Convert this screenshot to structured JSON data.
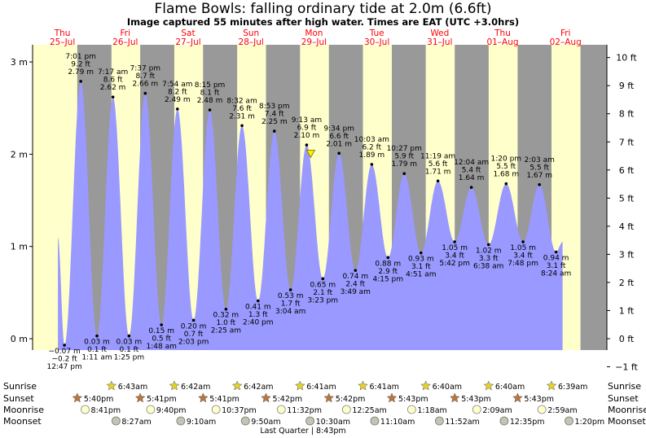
{
  "title": "Flame Bowls: falling  ordinary tide at 2.0m (6.6ft)",
  "subtitle": "Image captured 55 minutes after high water. Times are EAT (UTC +3.0hrs)",
  "days": [
    {
      "name": "Thu",
      "date": "25–Jul"
    },
    {
      "name": "Fri",
      "date": "26–Jul"
    },
    {
      "name": "Sat",
      "date": "27–Jul"
    },
    {
      "name": "Sun",
      "date": "28–Jul"
    },
    {
      "name": "Mon",
      "date": "29–Jul"
    },
    {
      "name": "Tue",
      "date": "30–Jul"
    },
    {
      "name": "Wed",
      "date": "31–Jul"
    },
    {
      "name": "Thu",
      "date": "01–Aug"
    },
    {
      "name": "Fri",
      "date": "02–Aug"
    }
  ],
  "chart_data": {
    "type": "area",
    "title": "Flame Bowls: falling  ordinary tide at 2.0m (6.6ft)",
    "ylabel_left_unit": "m",
    "ylabel_right_unit": "ft",
    "ylim_m": [
      -0.45,
      3.3
    ],
    "y_ticks_m": [
      "0 m",
      "1 m",
      "2 m",
      "3 m"
    ],
    "y_ticks_ft": [
      "−1 ft",
      "0 ft",
      "1 ft",
      "2 ft",
      "3 ft",
      "4 ft",
      "5 ft",
      "6 ft",
      "7 ft",
      "8 ft",
      "9 ft",
      "10 ft"
    ],
    "current_level_m": 2.0,
    "tides": [
      {
        "type": "low",
        "day": "25-Jul",
        "time": "12:47 pm",
        "m": "−0.07 m",
        "ft": "−0.2 ft",
        "value": -0.07
      },
      {
        "type": "high",
        "day": "25-Jul",
        "time": "7:01 pm",
        "m": "2.79 m",
        "ft": "9.2 ft",
        "value": 2.79
      },
      {
        "type": "low",
        "day": "26-Jul",
        "time": "1:11 am",
        "m": "0.03 m",
        "ft": "0.1 ft",
        "value": 0.03
      },
      {
        "type": "high",
        "day": "26-Jul",
        "time": "7:17 am",
        "m": "2.62 m",
        "ft": "8.6 ft",
        "value": 2.62
      },
      {
        "type": "low",
        "day": "26-Jul",
        "time": "1:25 pm",
        "m": "0.03 m",
        "ft": "0.1 ft",
        "value": 0.03
      },
      {
        "type": "high",
        "day": "26-Jul",
        "time": "7:37 pm",
        "m": "2.66 m",
        "ft": "8.7 ft",
        "value": 2.66
      },
      {
        "type": "low",
        "day": "27-Jul",
        "time": "1:48 am",
        "m": "0.15 m",
        "ft": "0.5 ft",
        "value": 0.15
      },
      {
        "type": "high",
        "day": "27-Jul",
        "time": "7:54 am",
        "m": "2.49 m",
        "ft": "8.2 ft",
        "value": 2.49
      },
      {
        "type": "low",
        "day": "27-Jul",
        "time": "2:03 pm",
        "m": "0.20 m",
        "ft": "0.7 ft",
        "value": 0.2
      },
      {
        "type": "high",
        "day": "27-Jul",
        "time": "8:15 pm",
        "m": "2.48 m",
        "ft": "8.1 ft",
        "value": 2.48
      },
      {
        "type": "low",
        "day": "28-Jul",
        "time": "2:25 am",
        "m": "0.32 m",
        "ft": "1.0 ft",
        "value": 0.32
      },
      {
        "type": "high",
        "day": "28-Jul",
        "time": "8:32 am",
        "m": "2.31 m",
        "ft": "7.6 ft",
        "value": 2.31
      },
      {
        "type": "low",
        "day": "28-Jul",
        "time": "2:40 pm",
        "m": "0.41 m",
        "ft": "1.3 ft",
        "value": 0.41
      },
      {
        "type": "high",
        "day": "28-Jul",
        "time": "8:53 pm",
        "m": "2.25 m",
        "ft": "7.4 ft",
        "value": 2.25
      },
      {
        "type": "low",
        "day": "29-Jul",
        "time": "3:04 am",
        "m": "0.53 m",
        "ft": "1.7 ft",
        "value": 0.53
      },
      {
        "type": "high",
        "day": "29-Jul",
        "time": "9:13 am",
        "m": "2.10 m",
        "ft": "6.9 ft",
        "value": 2.1
      },
      {
        "type": "low",
        "day": "29-Jul",
        "time": "3:23 pm",
        "m": "0.65 m",
        "ft": "2.1 ft",
        "value": 0.65
      },
      {
        "type": "high",
        "day": "29-Jul",
        "time": "9:34 pm",
        "m": "2.01 m",
        "ft": "6.6 ft",
        "value": 2.01
      },
      {
        "type": "low",
        "day": "30-Jul",
        "time": "3:49 am",
        "m": "0.74 m",
        "ft": "2.4 ft",
        "value": 0.74
      },
      {
        "type": "high",
        "day": "30-Jul",
        "time": "10:03 am",
        "m": "1.89 m",
        "ft": "6.2 ft",
        "value": 1.89
      },
      {
        "type": "low",
        "day": "30-Jul",
        "time": "4:15 pm",
        "m": "0.88 m",
        "ft": "2.9 ft",
        "value": 0.88
      },
      {
        "type": "high",
        "day": "30-Jul",
        "time": "10:27 pm",
        "m": "1.79 m",
        "ft": "5.9 ft",
        "value": 1.79
      },
      {
        "type": "low",
        "day": "31-Jul",
        "time": "4:51 am",
        "m": "0.93 m",
        "ft": "3.1 ft",
        "value": 0.93
      },
      {
        "type": "high",
        "day": "31-Jul",
        "time": "11:19 am",
        "m": "1.71 m",
        "ft": "5.6 ft",
        "value": 1.71
      },
      {
        "type": "low",
        "day": "31-Jul",
        "time": "5:42 pm",
        "m": "1.05 m",
        "ft": "3.4 ft",
        "value": 1.05
      },
      {
        "type": "high",
        "day": "01-Aug",
        "time": "12:04 am",
        "m": "1.64 m",
        "ft": "5.4 ft",
        "value": 1.64
      },
      {
        "type": "low",
        "day": "01-Aug",
        "time": "6:38 am",
        "m": "1.02 m",
        "ft": "3.3 ft",
        "value": 1.02
      },
      {
        "type": "high",
        "day": "01-Aug",
        "time": "1:20 pm",
        "m": "1.68 m",
        "ft": "5.5 ft",
        "value": 1.68
      },
      {
        "type": "low",
        "day": "01-Aug",
        "time": "7:48 pm",
        "m": "1.05 m",
        "ft": "3.4 ft",
        "value": 1.05
      },
      {
        "type": "high",
        "day": "02-Aug",
        "time": "2:03 am",
        "m": "1.67 m",
        "ft": "5.5 ft",
        "value": 1.67
      },
      {
        "type": "low",
        "day": "02-Aug",
        "time": "8:24 am",
        "m": "0.94 m",
        "ft": "3.1 ft",
        "value": 0.94
      }
    ]
  },
  "rows": {
    "sunrise_label": "Sunrise",
    "sunset_label": "Sunset",
    "moonrise_label": "Moonrise",
    "moonset_label": "Moonset",
    "sunrise": [
      "6:43am",
      "6:42am",
      "6:42am",
      "6:41am",
      "6:41am",
      "6:40am",
      "6:40am",
      "6:39am"
    ],
    "sunset": [
      "5:40pm",
      "5:41pm",
      "5:41pm",
      "5:42pm",
      "5:42pm",
      "5:43pm",
      "5:43pm",
      "5:43pm"
    ],
    "moonrise": [
      "8:41pm",
      "9:40pm",
      "10:37pm",
      "11:32pm",
      "12:25am",
      "1:18am",
      "2:09am",
      "2:59am"
    ],
    "moonset": [
      "8:27am",
      "9:10am",
      "9:50am",
      "10:30am",
      "11:10am",
      "11:52am",
      "12:35pm",
      "1:20pm"
    ],
    "moon_phase": "Last Quarter | 8:43pm"
  },
  "colors": {
    "day_bg": "#ffffcc",
    "night_bg": "#999999",
    "tide_fill": "#9999ff",
    "day_label": "#ff0000",
    "sun_star": "#e6d22a",
    "sunset_star": "#b8773d"
  }
}
